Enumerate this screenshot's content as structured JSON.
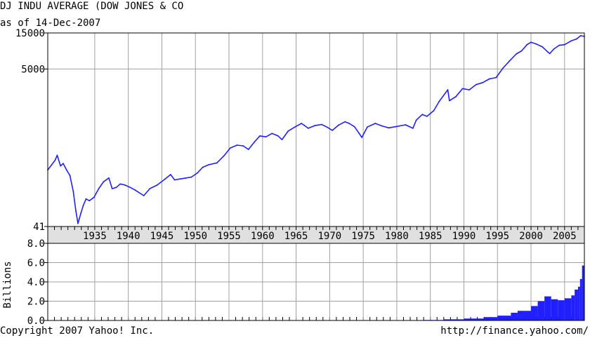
{
  "header": {
    "title": "DJ INDU AVERAGE (DOW JONES & CO",
    "subtitle": "as of 14-Dec-2007"
  },
  "footer": {
    "copyright": "Copyright 2007 Yahoo! Inc.",
    "url": "http://finance.yahoo.com/"
  },
  "colors": {
    "line": "#2020ff",
    "grid": "#a0a0a0",
    "axis_band": "#e0e0e0"
  },
  "chart_data": [
    {
      "type": "line",
      "title": "DJ INDU AVERAGE (DOW JONES & CO",
      "subtitle": "as of 14-Dec-2007",
      "yscale": "log",
      "ylim": [
        41,
        15000
      ],
      "xlim": [
        1928,
        2007.95
      ],
      "y_tick_labels": [
        "15000",
        "5000",
        "41"
      ],
      "x_tick_labels": [
        "1935",
        "1940",
        "1945",
        "1950",
        "1955",
        "1960",
        "1965",
        "1970",
        "1975",
        "1980",
        "1985",
        "1990",
        "1995",
        "2000",
        "2005"
      ],
      "grid": true,
      "series": [
        {
          "x": [
            1928,
            1929.1,
            1929.4,
            1929.9,
            1930.3,
            1930.8,
            1931.3,
            1931.8,
            1932.2,
            1932.5,
            1932.9,
            1933.3,
            1933.7,
            1934.2,
            1934.9,
            1935.6,
            1936.3,
            1937.1,
            1937.6,
            1938.2,
            1938.8,
            1939.5,
            1940.3,
            1941,
            1942.3,
            1943.2,
            1944.3,
            1945.5,
            1946.3,
            1946.9,
            1947.8,
            1948.6,
            1949.4,
            1950.3,
            1951.1,
            1952,
            1953.2,
            1954.2,
            1955.2,
            1956.2,
            1957.1,
            1957.9,
            1958.8,
            1959.6,
            1960.5,
            1961.4,
            1962.3,
            1962.9,
            1963.8,
            1964.8,
            1965.8,
            1966.2,
            1966.8,
            1967.8,
            1968.8,
            1969.6,
            1970.4,
            1971.3,
            1972.3,
            1972.9,
            1973.7,
            1974.4,
            1974.8,
            1975.6,
            1976.8,
            1977.8,
            1978.8,
            1979.8,
            1980.4,
            1981.3,
            1982.4,
            1982.9,
            1983.8,
            1984.5,
            1985.5,
            1986.3,
            1987.6,
            1987.85,
            1988.8,
            1989.8,
            1990.8,
            1991.8,
            1992.8,
            1993.8,
            1994.8,
            1995.8,
            1996.8,
            1997.8,
            1998.6,
            1999.4,
            2000,
            2000.8,
            2001.7,
            2002.5,
            2002.8,
            2003.4,
            2004.2,
            2005,
            2006,
            2006.8,
            2007.4,
            2007.95
          ],
          "y": [
            230,
            310,
            360,
            260,
            280,
            230,
            195,
            120,
            65,
            45,
            60,
            78,
            95,
            90,
            100,
            130,
            160,
            180,
            130,
            135,
            150,
            145,
            135,
            125,
            105,
            130,
            145,
            175,
            200,
            170,
            175,
            180,
            185,
            210,
            250,
            270,
            285,
            350,
            450,
            490,
            480,
            430,
            540,
            650,
            630,
            700,
            650,
            580,
            750,
            850,
            950,
            900,
            820,
            890,
            920,
            850,
            770,
            900,
            1000,
            950,
            860,
            700,
            620,
            850,
            950,
            880,
            830,
            860,
            880,
            910,
            820,
            1050,
            1250,
            1180,
            1400,
            1850,
            2650,
            1900,
            2150,
            2750,
            2650,
            3100,
            3300,
            3700,
            3850,
            5100,
            6400,
            7900,
            8700,
            10500,
            11300,
            10700,
            9800,
            8400,
            8000,
            9200,
            10300,
            10500,
            11800,
            12500,
            13800,
            13500
          ]
        }
      ]
    },
    {
      "type": "bar",
      "ylabel": "Billions",
      "ylim": [
        0,
        8.0
      ],
      "y_tick_labels": [
        "8.0",
        "6.0",
        "4.0",
        "2.0",
        "0.0"
      ],
      "series": [
        {
          "x": [
            1980,
            1984,
            1987,
            1990,
            1993,
            1995,
            1997,
            1998,
            2000,
            2001,
            2002,
            2003,
            2004,
            2005,
            2006,
            2006.5,
            2007,
            2007.3,
            2007.6,
            2007.9
          ],
          "values": [
            0.02,
            0.05,
            0.12,
            0.2,
            0.35,
            0.5,
            0.8,
            1.0,
            1.5,
            2.0,
            2.5,
            2.2,
            2.1,
            2.3,
            2.6,
            3.2,
            3.5,
            4.3,
            5.7,
            6.6
          ]
        }
      ]
    }
  ]
}
